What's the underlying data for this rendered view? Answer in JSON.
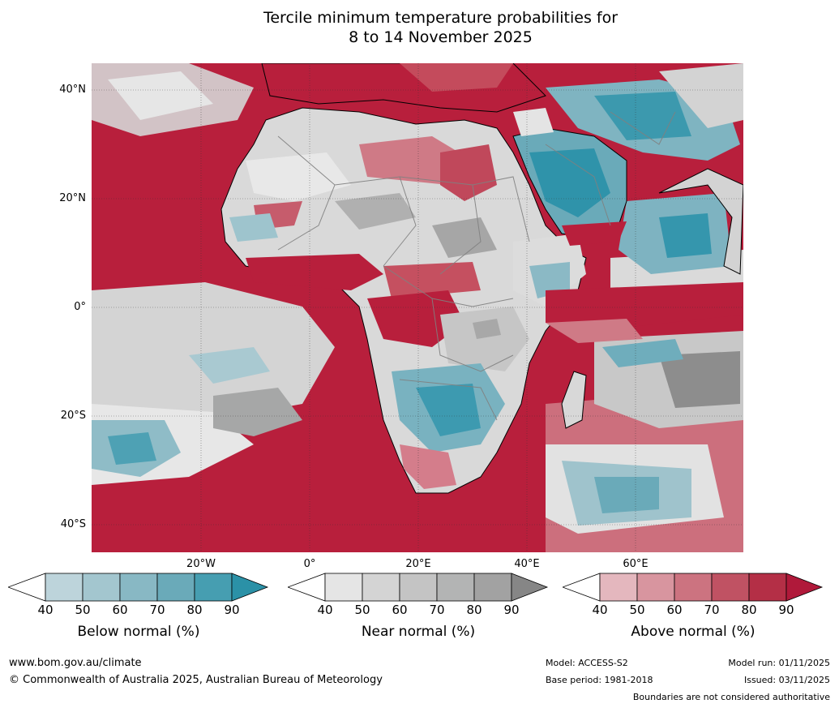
{
  "header": {
    "title_line1": "Tercile minimum temperature probabilities for",
    "title_line2": "8 to 14 November 2025"
  },
  "map": {
    "lat_labels": [
      "40°N",
      "20°N",
      "0°",
      "20°S",
      "40°S"
    ],
    "lon_labels": [
      "20°W",
      "0°",
      "20°E",
      "40°E",
      "60°E"
    ],
    "colors": {
      "ocean_warm": "#b81f3c",
      "land_neutral": "#dcdcdc",
      "cool": "#3f9bb0",
      "border": "#808080",
      "coast": "#000000"
    }
  },
  "legend": {
    "ticks": [
      "40",
      "50",
      "60",
      "70",
      "80",
      "90"
    ],
    "below": {
      "label": "Below normal (%)",
      "colors": [
        "#ffffff",
        "#bdd4db",
        "#a3c6cf",
        "#88b8c4",
        "#6aaab9",
        "#469eb1",
        "#2b91a7"
      ]
    },
    "near": {
      "label": "Near normal (%)",
      "colors": [
        "#ffffff",
        "#e5e5e5",
        "#d4d4d4",
        "#c4c4c4",
        "#b3b4b4",
        "#a2a2a2",
        "#868686"
      ]
    },
    "above": {
      "label": "Above normal (%)",
      "colors": [
        "#ffffff",
        "#e4b7be",
        "#d8959f",
        "#cc7380",
        "#c05263",
        "#b42f46",
        "#b0193a"
      ]
    }
  },
  "footer": {
    "website": "www.bom.gov.au/climate",
    "copyright": "© Commonwealth of Australia 2025, Australian Bureau of Meteorology",
    "model": "Model: ACCESS-S2",
    "base_period": "Base period: 1981-2018",
    "model_run": "Model run: 01/11/2025",
    "issued": "Issued: 03/11/2025",
    "disclaimer": "Boundaries are not considered authoritative"
  }
}
